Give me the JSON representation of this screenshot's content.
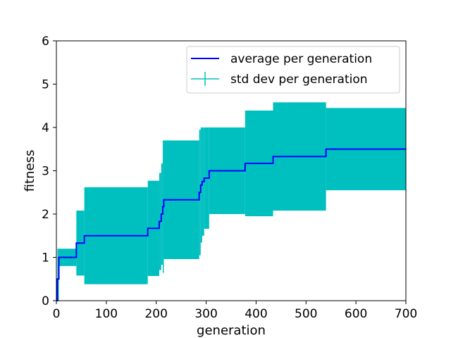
{
  "chart_data": {
    "type": "line",
    "title": "",
    "xlabel": "generation",
    "ylabel": "fitness",
    "xlim": [
      0,
      700
    ],
    "ylim": [
      0,
      6
    ],
    "xticks": [
      0,
      100,
      200,
      300,
      400,
      500,
      600,
      700
    ],
    "yticks": [
      0,
      1,
      2,
      3,
      4,
      5,
      6
    ],
    "grid": false,
    "legend_position": "top-right",
    "colors": {
      "average": "#0000ff",
      "std": "#00bfbf"
    },
    "series": [
      {
        "name": "average per generation",
        "style": "step",
        "x": [
          0,
          2,
          5,
          40,
          56,
          183,
          206,
          210,
          213,
          215,
          286,
          289,
          292,
          296,
          306,
          378,
          434,
          540,
          700
        ],
        "y": [
          0,
          0.5,
          1.0,
          1.33,
          1.5,
          1.67,
          1.83,
          2.0,
          2.17,
          2.33,
          2.5,
          2.67,
          2.75,
          2.83,
          3.0,
          3.17,
          3.33,
          3.5,
          3.5
        ]
      },
      {
        "name": "std dev per generation",
        "style": "errorbar-band",
        "x": [
          0,
          2,
          5,
          40,
          56,
          183,
          206,
          210,
          213,
          215,
          286,
          289,
          292,
          296,
          306,
          378,
          434,
          540,
          700
        ],
        "mean": [
          0,
          0.5,
          1.0,
          1.33,
          1.5,
          1.67,
          1.83,
          2.0,
          2.17,
          2.33,
          2.5,
          2.67,
          2.75,
          2.83,
          3.0,
          3.17,
          3.33,
          3.5,
          3.5
        ],
        "std": [
          0,
          0.7,
          0.2,
          0.75,
          1.12,
          1.1,
          1.12,
          1.17,
          1.53,
          1.37,
          1.45,
          1.33,
          1.25,
          1.17,
          1.0,
          1.22,
          1.25,
          0.95,
          0.95
        ]
      }
    ]
  }
}
